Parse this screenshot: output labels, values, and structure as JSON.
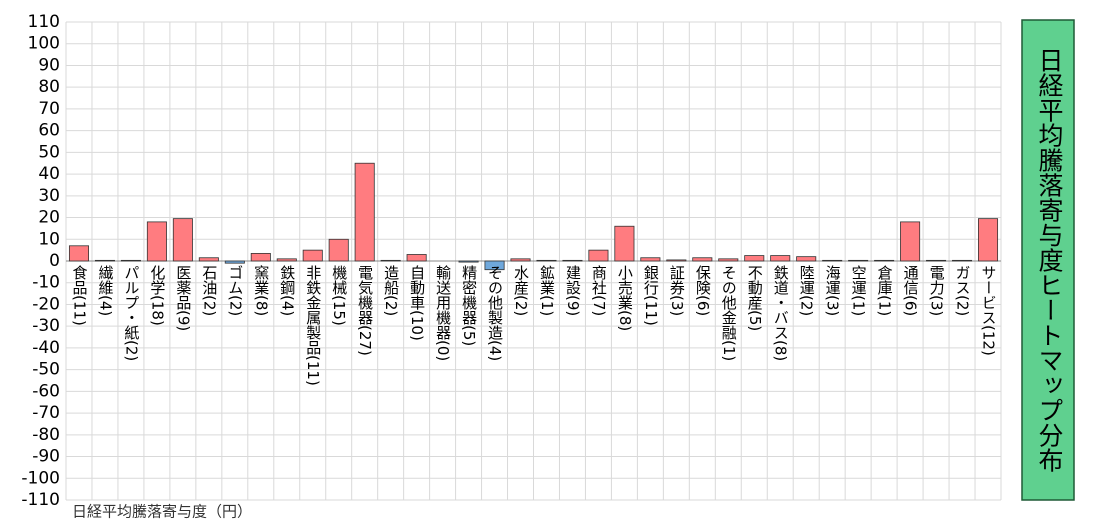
{
  "chart_data": {
    "type": "bar",
    "title": "日経平均騰落寄与度ヒートマップ分布",
    "y_label": "日経平均騰落寄与度（円）",
    "categories": [
      "食品(11)",
      "繊維(4)",
      "パルプ・紙(2)",
      "化学(18)",
      "医薬品(9)",
      "石油(2)",
      "ゴム(2)",
      "窯業(8)",
      "鉄鋼(4)",
      "非鉄金属製品(11)",
      "機械(15)",
      "電気機器(27)",
      "造船(2)",
      "自動車(10)",
      "輸送用機器(0)",
      "精密機器(5)",
      "その他製造(4)",
      "水産(2)",
      "鉱業(1)",
      "建設(9)",
      "商社(7)",
      "小売業(8)",
      "銀行(11)",
      "証券(3)",
      "保険(6)",
      "その他金融(1)",
      "不動産(5)",
      "鉄道・バス(8)",
      "陸運(2)",
      "海運(3)",
      "空運(1)",
      "倉庫(1)",
      "通信(6)",
      "電力(3)",
      "ガス(2)",
      "サービス(12)"
    ],
    "values": [
      7,
      0.3,
      0.3,
      18,
      19.5,
      1.5,
      -1,
      3.5,
      1,
      5,
      10,
      45,
      0.3,
      3,
      0,
      -0.5,
      -4,
      1,
      0.3,
      0.3,
      5,
      16,
      1.5,
      0.5,
      1.5,
      1,
      2.5,
      2.5,
      2,
      0.3,
      0.3,
      0.3,
      18,
      0.3,
      0.3,
      19.5
    ],
    "color": "#ff7c80",
    "negative_color": "#6fa8dc",
    "ylim": [
      -110,
      110
    ],
    "yticks": [
      -110,
      -100,
      -90,
      -80,
      -70,
      -60,
      -50,
      -40,
      -30,
      -20,
      -10,
      0,
      10,
      20,
      30,
      40,
      50,
      60,
      70,
      80,
      90,
      100,
      110
    ],
    "grid": true
  }
}
